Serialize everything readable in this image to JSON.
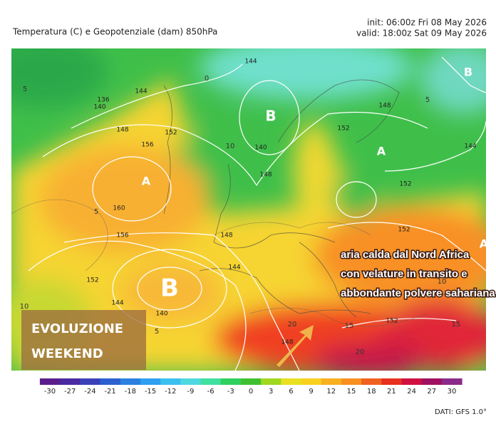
{
  "header": {
    "title": "Temperatura (C) e Geopotenziale (dam) 850hPa",
    "init": "init: 06:00z Fri 08 May 2026",
    "valid": "valid: 18:00z Sat 09 May 2026"
  },
  "map": {
    "pressure_centers": [
      "B",
      "A",
      "B",
      "A",
      "B",
      "A"
    ],
    "contour_labels": [
      "136",
      "140",
      "144",
      "148",
      "152",
      "156",
      "160",
      "156",
      "152",
      "144",
      "140",
      "148",
      "144",
      "144",
      "140",
      "148",
      "148",
      "152",
      "152",
      "152",
      "144",
      "148",
      "152"
    ],
    "temperature_labels": [
      "5",
      "10",
      "5",
      "0",
      "5",
      "10",
      "15",
      "20",
      "20",
      "15",
      "10",
      "5"
    ]
  },
  "annotation": {
    "lines": [
      "aria calda dal Nord Africa",
      "con velature in transito e",
      "abbondante polvere sahariana"
    ]
  },
  "badge": {
    "lines": [
      "EVOLUZIONE",
      "WEEKEND"
    ]
  },
  "colorbar": {
    "ticks": [
      -30,
      -27,
      -24,
      -21,
      -18,
      -15,
      -12,
      -9,
      -6,
      -3,
      0,
      3,
      6,
      9,
      12,
      15,
      18,
      21,
      24,
      27,
      30
    ],
    "colors": [
      "#5a1e8c",
      "#4a2aa0",
      "#3a40b8",
      "#2c5fd0",
      "#2b80e0",
      "#2ea0f0",
      "#3cc0f0",
      "#50d8e0",
      "#40e0a0",
      "#30d060",
      "#40c030",
      "#a0d820",
      "#e8e020",
      "#f8d020",
      "#f8b020",
      "#f89020",
      "#f06020",
      "#e83020",
      "#d01040",
      "#a01060",
      "#8a2a8a"
    ]
  },
  "footer": "DATI: GFS 1.0°"
}
